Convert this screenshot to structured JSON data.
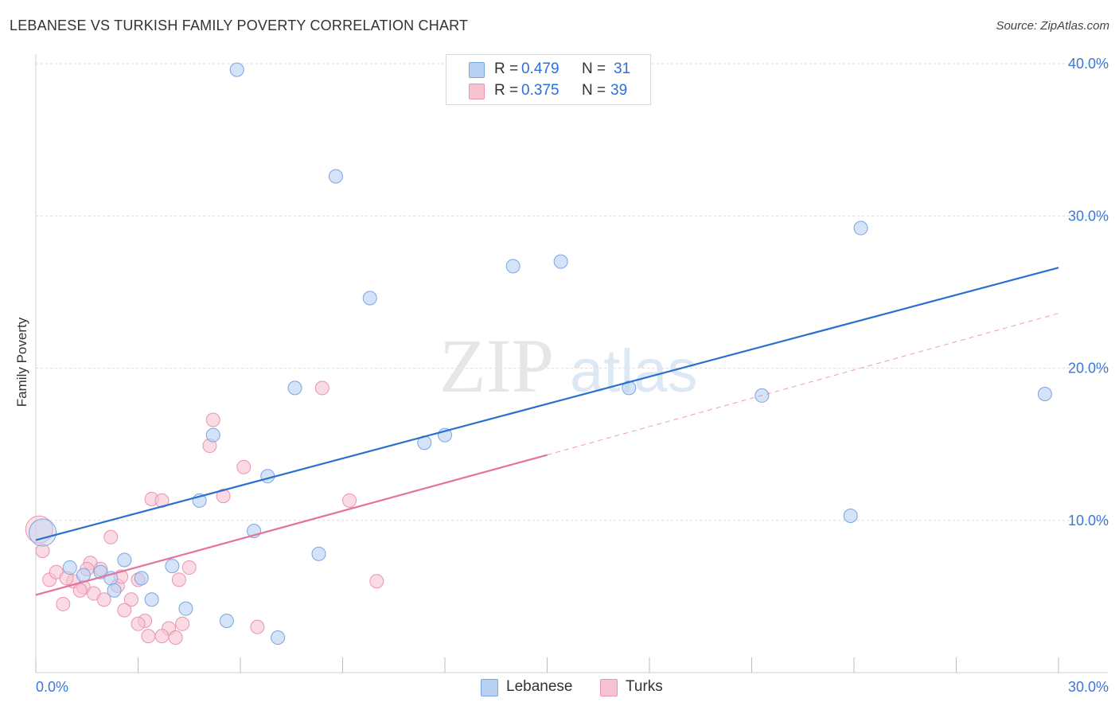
{
  "title": "LEBANESE VS TURKISH FAMILY POVERTY CORRELATION CHART",
  "source": "Source: ZipAtlas.com",
  "watermark": {
    "zip": "ZIP",
    "atlas": "atlas"
  },
  "legend": {
    "rows": [
      {
        "r_label": "R =",
        "r_value": "0.479",
        "n_label": "N =",
        "n_value": "31"
      },
      {
        "r_label": "R =",
        "r_value": "0.375",
        "n_label": "N =",
        "n_value": "39"
      }
    ]
  },
  "colors": {
    "lebanese_fill": "#b8d1f3",
    "lebanese_stroke": "#7aa6e0",
    "lebanese_line": "#2a6fcf",
    "turks_fill": "#f7c3d2",
    "turks_stroke": "#eb93ad",
    "turks_line": "#e5729a",
    "grid": "#dcdcdc",
    "axis_text": "#3b78d8"
  },
  "chart_data": {
    "type": "scatter",
    "title": "LEBANESE VS TURKISH FAMILY POVERTY CORRELATION CHART",
    "xlabel": "",
    "ylabel": "Family Poverty",
    "xlim": [
      0,
      30
    ],
    "ylim": [
      0,
      40
    ],
    "x_tick_labels": [
      "0.0%",
      "30.0%"
    ],
    "y_ticks": [
      10,
      20,
      30,
      40
    ],
    "y_tick_labels": [
      "10.0%",
      "20.0%",
      "30.0%",
      "40.0%"
    ],
    "grid": true,
    "legend_position": "top-center",
    "series": [
      {
        "name": "Lebanese",
        "r": 0.479,
        "n": 31,
        "points": [
          {
            "x": 0.2,
            "y": 9.2,
            "big": true
          },
          {
            "x": 5.9,
            "y": 39.6
          },
          {
            "x": 8.8,
            "y": 32.6
          },
          {
            "x": 9.8,
            "y": 24.6
          },
          {
            "x": 14.0,
            "y": 26.7
          },
          {
            "x": 15.4,
            "y": 27.0
          },
          {
            "x": 24.2,
            "y": 29.2
          },
          {
            "x": 7.6,
            "y": 18.7
          },
          {
            "x": 11.4,
            "y": 15.1
          },
          {
            "x": 12.0,
            "y": 15.6
          },
          {
            "x": 17.4,
            "y": 18.7
          },
          {
            "x": 21.3,
            "y": 18.2
          },
          {
            "x": 29.6,
            "y": 18.3
          },
          {
            "x": 23.9,
            "y": 10.3
          },
          {
            "x": 5.2,
            "y": 15.6
          },
          {
            "x": 6.8,
            "y": 12.9
          },
          {
            "x": 4.8,
            "y": 11.3
          },
          {
            "x": 6.4,
            "y": 9.3
          },
          {
            "x": 8.3,
            "y": 7.8
          },
          {
            "x": 2.6,
            "y": 7.4
          },
          {
            "x": 4.0,
            "y": 7.0
          },
          {
            "x": 3.1,
            "y": 6.2
          },
          {
            "x": 1.0,
            "y": 6.9
          },
          {
            "x": 1.4,
            "y": 6.4
          },
          {
            "x": 1.9,
            "y": 6.6
          },
          {
            "x": 2.2,
            "y": 6.2
          },
          {
            "x": 2.3,
            "y": 5.4
          },
          {
            "x": 3.4,
            "y": 4.8
          },
          {
            "x": 4.4,
            "y": 4.2
          },
          {
            "x": 5.6,
            "y": 3.4
          },
          {
            "x": 7.1,
            "y": 2.3
          }
        ],
        "trend": {
          "x0": 0,
          "y0": 8.7,
          "x1": 30,
          "y1": 26.6
        }
      },
      {
        "name": "Turks",
        "r": 0.375,
        "n": 39,
        "points": [
          {
            "x": 0.1,
            "y": 9.4,
            "big": true
          },
          {
            "x": 0.2,
            "y": 8.0
          },
          {
            "x": 8.4,
            "y": 18.7
          },
          {
            "x": 5.2,
            "y": 16.6
          },
          {
            "x": 5.1,
            "y": 14.9
          },
          {
            "x": 6.1,
            "y": 13.5
          },
          {
            "x": 3.4,
            "y": 11.4
          },
          {
            "x": 3.7,
            "y": 11.3
          },
          {
            "x": 5.5,
            "y": 11.6
          },
          {
            "x": 9.2,
            "y": 11.3
          },
          {
            "x": 2.2,
            "y": 8.9
          },
          {
            "x": 1.6,
            "y": 7.2
          },
          {
            "x": 4.5,
            "y": 6.9
          },
          {
            "x": 10.0,
            "y": 6.0
          },
          {
            "x": 0.4,
            "y": 6.1
          },
          {
            "x": 0.6,
            "y": 6.6
          },
          {
            "x": 1.1,
            "y": 6.0
          },
          {
            "x": 1.4,
            "y": 5.6
          },
          {
            "x": 1.5,
            "y": 6.8
          },
          {
            "x": 1.9,
            "y": 6.8
          },
          {
            "x": 2.4,
            "y": 5.7
          },
          {
            "x": 2.5,
            "y": 6.3
          },
          {
            "x": 3.0,
            "y": 6.1
          },
          {
            "x": 4.2,
            "y": 6.1
          },
          {
            "x": 1.7,
            "y": 5.2
          },
          {
            "x": 2.0,
            "y": 4.8
          },
          {
            "x": 0.8,
            "y": 4.5
          },
          {
            "x": 2.8,
            "y": 4.8
          },
          {
            "x": 2.6,
            "y": 4.1
          },
          {
            "x": 3.2,
            "y": 3.4
          },
          {
            "x": 3.0,
            "y": 3.2
          },
          {
            "x": 3.9,
            "y": 2.9
          },
          {
            "x": 4.3,
            "y": 3.2
          },
          {
            "x": 3.7,
            "y": 2.4
          },
          {
            "x": 4.1,
            "y": 2.3
          },
          {
            "x": 6.5,
            "y": 3.0
          },
          {
            "x": 1.3,
            "y": 5.4
          },
          {
            "x": 0.9,
            "y": 6.2
          },
          {
            "x": 3.3,
            "y": 2.4
          }
        ],
        "trend": {
          "x0": 0,
          "y0": 5.1,
          "x1": 15,
          "y1": 14.3,
          "x1_dashed": 30,
          "y1_dashed": 23.6
        }
      }
    ]
  },
  "bottom_legend": [
    "Lebanese",
    "Turks"
  ]
}
